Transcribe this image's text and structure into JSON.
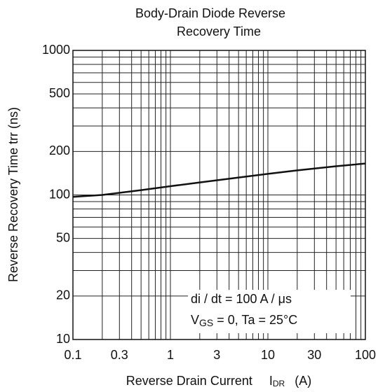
{
  "chart_data": {
    "type": "line",
    "title": [
      "Body-Drain Diode Reverse",
      "Recovery Time"
    ],
    "x_label": {
      "text": "Reverse Drain Current",
      "symbol": "I",
      "sub": "DR",
      "unit": "(A)"
    },
    "y_label": "Reverse Recovery Time  trr  (ns)",
    "annotations": [
      {
        "text": "di / dt = 100 A / μs"
      },
      {
        "symbol": "V",
        "sub": "GS",
        "text": " = 0, Ta = 25°C"
      }
    ],
    "xlog": true,
    "ylog": true,
    "xlim": [
      0.1,
      100
    ],
    "ylim": [
      10,
      1000
    ],
    "xticks": [
      0.1,
      0.3,
      1,
      3,
      10,
      30,
      100
    ],
    "yticks": [
      10,
      20,
      50,
      100,
      200,
      500,
      1000
    ],
    "xgrid": [
      0.2,
      0.4,
      0.5,
      0.6,
      0.7,
      0.8,
      0.9,
      2,
      4,
      5,
      6,
      7,
      8,
      9,
      20,
      40,
      50,
      60,
      70,
      80,
      90
    ],
    "ygrid": [
      30,
      40,
      60,
      70,
      80,
      90,
      300,
      400,
      600,
      700,
      800,
      900
    ],
    "series": [
      {
        "color": "#111111",
        "x": [
          0.1,
          0.2,
          0.5,
          1,
          2,
          5,
          10,
          20,
          50,
          100
        ],
        "values": [
          97,
          100,
          108,
          115,
          122,
          132,
          140,
          148,
          158,
          165
        ]
      }
    ]
  }
}
